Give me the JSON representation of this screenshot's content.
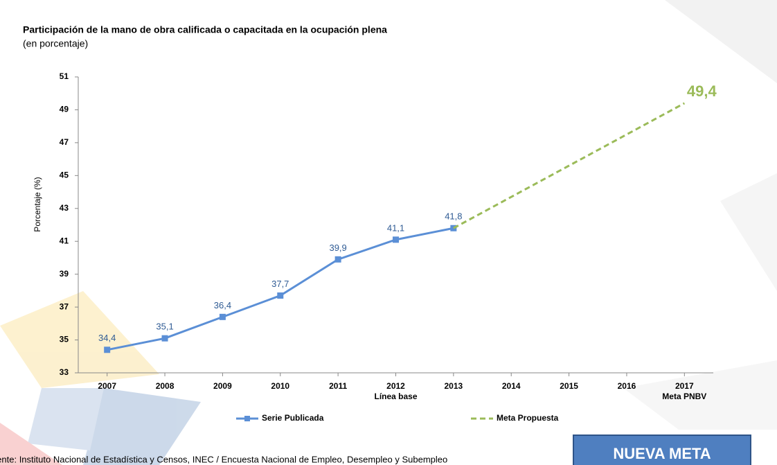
{
  "chart_data": {
    "type": "line",
    "title": "Participación de la mano de obra calificada o capacitada en la ocupación plena",
    "subtitle": "(en porcentaje)",
    "y_label": "Porcentaje (%)",
    "xlim": [
      2006.5,
      2017.5
    ],
    "xticks": [
      2007,
      2008,
      2009,
      2010,
      2011,
      2012,
      2013,
      2014,
      2015,
      2016,
      2017
    ],
    "annotations": [
      {
        "x": 2012,
        "text": "Línea base"
      },
      {
        "x": 2017,
        "text": "Meta PNBV"
      }
    ],
    "ylim": [
      33,
      51
    ],
    "yticks": [
      33,
      35,
      37,
      39,
      41,
      43,
      45,
      47,
      49,
      51
    ],
    "series": [
      {
        "name": "Serie Publicada",
        "color": "#5b8fd6",
        "dashed": false,
        "markers": true,
        "x": [
          2007,
          2008,
          2009,
          2010,
          2011,
          2012,
          2013
        ],
        "values": [
          34.4,
          35.1,
          36.4,
          37.7,
          39.9,
          41.1,
          41.8
        ],
        "value_labels": [
          "34,4",
          "35,1",
          "36,4",
          "37,7",
          "39,9",
          "41,1",
          "41,8"
        ]
      },
      {
        "name": "Meta Propuesta",
        "color": "#9bbb59",
        "dashed": true,
        "markers": false,
        "x": [
          2013,
          2017
        ],
        "values": [
          41.8,
          49.4
        ],
        "value_labels": [
          null,
          "49,4"
        ]
      }
    ],
    "source": "Fuente: Instituto Nacional de Estadística y Censos, INEC / Encuesta Nacional de Empleo, Desempleo y Subempleo",
    "badge": "NUEVA META"
  }
}
